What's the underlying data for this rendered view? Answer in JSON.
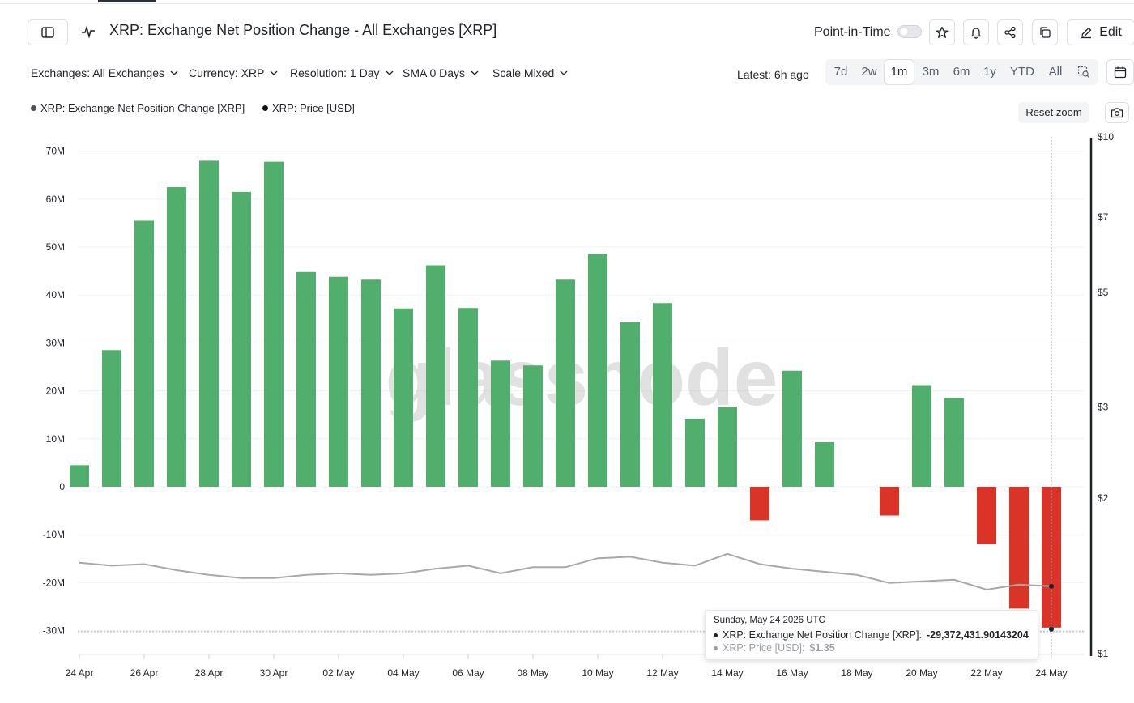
{
  "header": {
    "title": "XRP: Exchange Net Position Change - All Exchanges [XRP]",
    "point_in_time_label": "Point-in-Time",
    "edit_label": "Edit"
  },
  "filters": {
    "exchanges": "Exchanges: All Exchanges",
    "currency": "Currency: XRP",
    "resolution": "Resolution: 1 Day",
    "sma": "SMA 0 Days",
    "scale": "Scale Mixed"
  },
  "latest": "Latest: 6h ago",
  "ranges": [
    "7d",
    "2w",
    "1m",
    "3m",
    "6m",
    "1y",
    "YTD",
    "All"
  ],
  "selected_range": "1m",
  "legend": [
    {
      "label": "XRP: Exchange Net Position Change [XRP]",
      "color": "#4b4f56"
    },
    {
      "label": "XRP: Price [USD]",
      "color": "#111111"
    }
  ],
  "reset_zoom_label": "Reset zoom",
  "watermark": "glassnode",
  "colors": {
    "positive": "#52ae6c",
    "negative": "#d93427",
    "price_line": "#a8a8a8"
  },
  "icons": [
    "sidebar-toggle-icon",
    "pulse-icon",
    "star-icon",
    "bell-icon",
    "share-icon",
    "copy-icon",
    "pencil-icon",
    "chevron-down-icon",
    "zoom-select-icon",
    "calendar-icon",
    "camera-icon"
  ],
  "tooltip": {
    "date": "Sunday, May 24 2026 UTC",
    "row1_label": "XRP: Exchange Net Position Change [XRP]:",
    "row1_value": "-29,372,431.90143204",
    "row2_label": "XRP: Price [USD]:",
    "row2_value": "$1.35"
  },
  "chart_data": {
    "type": "bar",
    "categories": [
      "24 Apr",
      "25 Apr",
      "26 Apr",
      "27 Apr",
      "28 Apr",
      "29 Apr",
      "30 Apr",
      "01 May",
      "02 May",
      "03 May",
      "04 May",
      "05 May",
      "06 May",
      "07 May",
      "08 May",
      "09 May",
      "10 May",
      "11 May",
      "12 May",
      "13 May",
      "14 May",
      "15 May",
      "16 May",
      "17 May",
      "18 May",
      "19 May",
      "20 May",
      "21 May",
      "22 May",
      "23 May",
      "24 May"
    ],
    "x_tick_labels": [
      "24 Apr",
      "26 Apr",
      "28 Apr",
      "30 Apr",
      "02 May",
      "04 May",
      "06 May",
      "08 May",
      "10 May",
      "12 May",
      "14 May",
      "16 May",
      "18 May",
      "20 May",
      "22 May",
      "24 May"
    ],
    "series": [
      {
        "name": "XRP: Exchange Net Position Change [XRP]",
        "axis": "left",
        "values": [
          4.5,
          28.5,
          55.5,
          62.5,
          68.0,
          61.5,
          67.8,
          44.8,
          43.8,
          43.2,
          37.2,
          46.2,
          37.3,
          26.3,
          25.3,
          43.2,
          48.6,
          34.3,
          38.3,
          14.2,
          16.6,
          -7.0,
          24.2,
          9.3,
          0,
          -6.0,
          21.2,
          18.5,
          -12.0,
          -25.4,
          -29.37
        ]
      },
      {
        "name": "XRP: Price [USD]",
        "axis": "right",
        "values": [
          1.5,
          1.48,
          1.49,
          1.45,
          1.42,
          1.4,
          1.4,
          1.42,
          1.43,
          1.42,
          1.43,
          1.46,
          1.48,
          1.43,
          1.47,
          1.47,
          1.53,
          1.54,
          1.5,
          1.48,
          1.56,
          1.49,
          1.46,
          1.44,
          1.42,
          1.37,
          1.38,
          1.39,
          1.33,
          1.36,
          1.35
        ]
      }
    ],
    "yleft_ticks": [
      "70M",
      "60M",
      "50M",
      "40M",
      "30M",
      "20M",
      "10M",
      "0",
      "-10M",
      "-20M",
      "-30M"
    ],
    "yleft_lim": [
      -30,
      70
    ],
    "yright_ticks": [
      "$10",
      "$7",
      "$5",
      "$3",
      "$2",
      "$1"
    ],
    "yright_scale": "log",
    "grid": true
  }
}
